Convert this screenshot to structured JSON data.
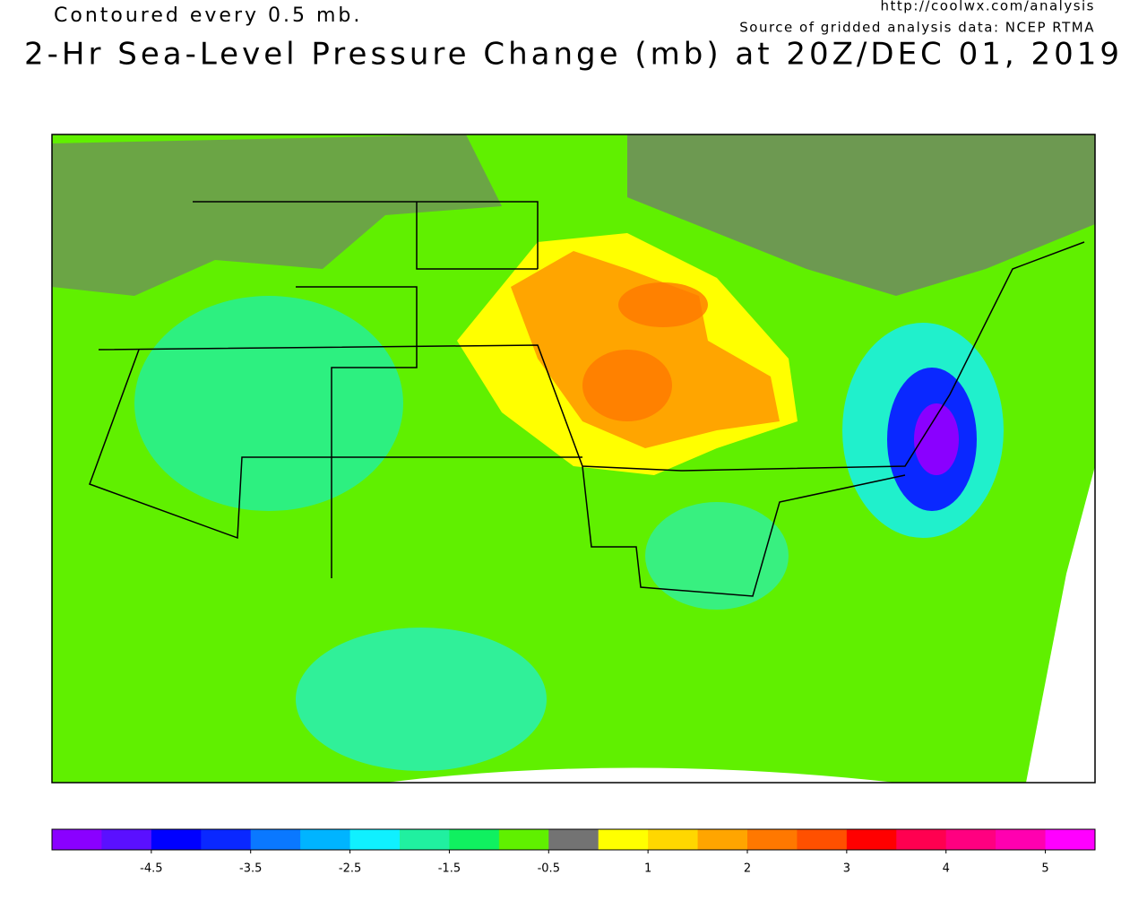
{
  "header": {
    "contour_note": "Contoured every 0.5 mb.",
    "url": "http://coolwx.com/analysis",
    "source": "Source of gridded analysis data:  NCEP RTMA",
    "title": "2-Hr Sea-Level Pressure Change (mb) at 20Z/DEC 01, 2019"
  },
  "colorbar": {
    "bounds": [
      -5.5,
      -5,
      -4.5,
      -4,
      -3.5,
      -3,
      -2.5,
      -2,
      -1.5,
      -1,
      -0.5,
      0.5,
      1,
      1.5,
      2,
      2.5,
      3,
      3.5,
      4,
      4.5,
      5,
      5.5
    ],
    "colors": [
      "#8a00ff",
      "#5a10ff",
      "#0000ff",
      "#0a28ff",
      "#0a78ff",
      "#00b4ff",
      "#10f0ff",
      "#20f0a0",
      "#10f060",
      "#60f000",
      "#737373",
      "#ffff00",
      "#ffd700",
      "#ffa500",
      "#ff7800",
      "#ff5000",
      "#ff0000",
      "#ff0050",
      "#ff0080",
      "#ff00b0",
      "#ff00ff"
    ],
    "ticks": [
      -4.5,
      -3.5,
      -2.5,
      -1.5,
      -0.5,
      1,
      2,
      3,
      4,
      5
    ]
  }
}
